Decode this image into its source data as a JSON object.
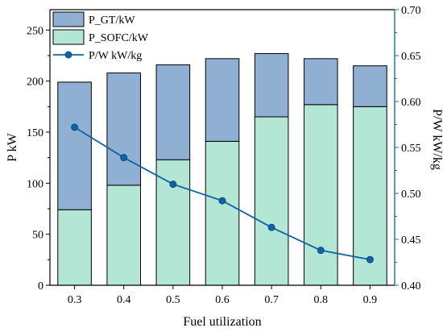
{
  "chart_data": {
    "type": "bar",
    "categories": [
      "0.3",
      "0.4",
      "0.5",
      "0.6",
      "0.7",
      "0.8",
      "0.9"
    ],
    "series": [
      {
        "name": "P_SOFC/kW",
        "kind": "stacked-bar",
        "axis": "left",
        "color": "#b3e6d4",
        "values": [
          74,
          98,
          123,
          141,
          165,
          177,
          175
        ]
      },
      {
        "name": "P_GT/kW",
        "kind": "stacked-bar",
        "axis": "left",
        "color": "#8fb0d3",
        "values": [
          125,
          110,
          93,
          81,
          62,
          45,
          40
        ]
      },
      {
        "name": "P/W kW/kg",
        "kind": "line-with-markers",
        "axis": "right",
        "color": "#0e62a6",
        "values": [
          0.572,
          0.539,
          0.51,
          0.492,
          0.463,
          0.438,
          0.428
        ]
      }
    ],
    "xlabel": "Fuel utilization",
    "ylabel": "P kW",
    "y2label": "P/W kW/kg",
    "ylim": [
      0,
      270
    ],
    "y2lim": [
      0.4,
      0.7
    ],
    "yticks": [
      "0",
      "50",
      "100",
      "150",
      "200",
      "250"
    ],
    "y2ticks": [
      "0.40",
      "0.45",
      "0.50",
      "0.55",
      "0.60",
      "0.65",
      "0.70"
    ],
    "legend": {
      "placement": "top-left",
      "entries": [
        "P_GT/kW",
        "P_SOFC/kW",
        "P/W kW/kg"
      ]
    },
    "grid": false,
    "right_axis_color": "#1a6fad"
  }
}
